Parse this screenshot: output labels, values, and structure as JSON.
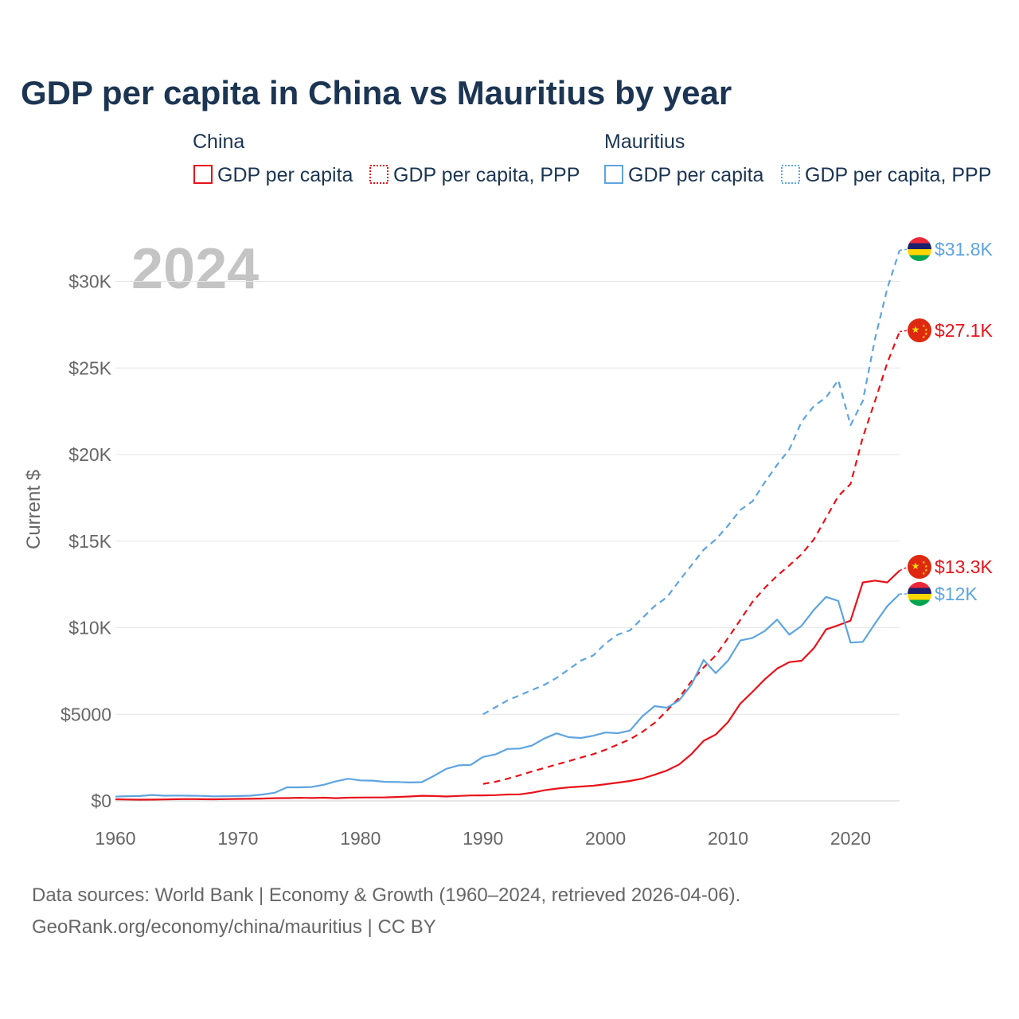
{
  "title": "GDP per capita in China vs Mauritius by year",
  "watermark_year": "2024",
  "legend": {
    "groups": [
      {
        "country": "China",
        "color": "#e8121a",
        "items": [
          "GDP per capita",
          "GDP per capita, PPP"
        ]
      },
      {
        "country": "Mauritius",
        "color": "#5ea4e0",
        "items": [
          "GDP per capita",
          "GDP per capita, PPP"
        ]
      }
    ]
  },
  "source_lines": [
    "Data sources: World Bank | Economy & Growth (1960–2024, retrieved 2026-04-06).",
    "GeoRank.org/economy/china/mauritius | CC BY"
  ],
  "chart_data": {
    "type": "line",
    "title": "GDP per capita in China vs Mauritius by year",
    "xlabel": "",
    "ylabel": "Current $",
    "xlim": [
      1960,
      2024
    ],
    "ylim": [
      0,
      32000
    ],
    "x_ticks": [
      1960,
      1970,
      1980,
      1990,
      2000,
      2010,
      2020
    ],
    "y_ticks": [
      0,
      5000,
      10000,
      15000,
      20000,
      25000,
      30000
    ],
    "y_tick_labels": [
      "$0",
      "$5000",
      "$10K",
      "$15K",
      "$20K",
      "$25K",
      "$30K"
    ],
    "grid": true,
    "series": [
      {
        "name": "China GDP per capita",
        "country": "China",
        "color": "#e8121a",
        "dash": false,
        "end_label": "$13.3K",
        "flag": "china",
        "x": [
          1960,
          1961,
          1962,
          1963,
          1964,
          1965,
          1966,
          1967,
          1968,
          1969,
          1970,
          1971,
          1972,
          1973,
          1974,
          1975,
          1976,
          1977,
          1978,
          1979,
          1980,
          1981,
          1982,
          1983,
          1984,
          1985,
          1986,
          1987,
          1988,
          1989,
          1990,
          1991,
          1992,
          1993,
          1994,
          1995,
          1996,
          1997,
          1998,
          1999,
          2000,
          2001,
          2002,
          2003,
          2004,
          2005,
          2006,
          2007,
          2008,
          2009,
          2010,
          2011,
          2012,
          2013,
          2014,
          2015,
          2016,
          2017,
          2018,
          2019,
          2020,
          2021,
          2022,
          2023,
          2024
        ],
        "values": [
          90,
          76,
          71,
          74,
          85,
          98,
          105,
          98,
          91,
          100,
          113,
          119,
          132,
          157,
          160,
          178,
          165,
          185,
          156,
          184,
          195,
          197,
          203,
          225,
          251,
          294,
          281,
          252,
          284,
          311,
          318,
          333,
          366,
          377,
          473,
          610,
          709,
          782,
          829,
          873,
          959,
          1053,
          1149,
          1289,
          1509,
          1753,
          2099,
          2694,
          3468,
          3832,
          4550,
          5614,
          6301,
          7020,
          7636,
          8016,
          8094,
          8817,
          9905,
          10144,
          10409,
          12618,
          12720,
          12614,
          13303
        ]
      },
      {
        "name": "China GDP per capita, PPP",
        "country": "China",
        "color": "#e8121a",
        "dash": true,
        "end_label": "$27.1K",
        "flag": "china",
        "x": [
          1990,
          1991,
          1992,
          1993,
          1994,
          1995,
          1996,
          1997,
          1998,
          1999,
          2000,
          2001,
          2002,
          2003,
          2004,
          2005,
          2006,
          2007,
          2008,
          2009,
          2010,
          2011,
          2012,
          2013,
          2014,
          2015,
          2016,
          2017,
          2018,
          2019,
          2020,
          2021,
          2022,
          2023,
          2024
        ],
        "values": [
          980,
          1100,
          1280,
          1480,
          1700,
          1900,
          2100,
          2300,
          2500,
          2700,
          2950,
          3250,
          3560,
          3980,
          4500,
          5200,
          5950,
          6900,
          7700,
          8400,
          9400,
          10450,
          11500,
          12300,
          13000,
          13600,
          14250,
          15100,
          16350,
          17600,
          18300,
          21000,
          23100,
          25300,
          27100
        ]
      },
      {
        "name": "Mauritius GDP per capita",
        "country": "Mauritius",
        "color": "#5ea4e0",
        "dash": false,
        "end_label": "$12K",
        "flag": "mauritius",
        "x": [
          1960,
          1961,
          1962,
          1963,
          1964,
          1965,
          1966,
          1967,
          1968,
          1969,
          1970,
          1971,
          1972,
          1973,
          1974,
          1975,
          1976,
          1977,
          1978,
          1979,
          1980,
          1981,
          1982,
          1983,
          1984,
          1985,
          1986,
          1987,
          1988,
          1989,
          1990,
          1991,
          1992,
          1993,
          1994,
          1995,
          1996,
          1997,
          1998,
          1999,
          2000,
          2001,
          2002,
          2003,
          2004,
          2005,
          2006,
          2007,
          2008,
          2009,
          2010,
          2011,
          2012,
          2013,
          2014,
          2015,
          2016,
          2017,
          2018,
          2019,
          2020,
          2021,
          2022,
          2023,
          2024
        ],
        "values": [
          250,
          270,
          280,
          340,
          300,
          310,
          300,
          290,
          260,
          270,
          280,
          300,
          370,
          470,
          780,
          780,
          800,
          930,
          1130,
          1280,
          1180,
          1170,
          1100,
          1090,
          1060,
          1080,
          1450,
          1850,
          2050,
          2080,
          2540,
          2680,
          3000,
          3020,
          3200,
          3600,
          3900,
          3680,
          3630,
          3760,
          3950,
          3910,
          4060,
          4880,
          5470,
          5380,
          5800,
          6700,
          8140,
          7380,
          8100,
          9260,
          9410,
          9810,
          10470,
          9600,
          10110,
          11030,
          11780,
          11550,
          9140,
          9180,
          10250,
          11250,
          11950
        ]
      },
      {
        "name": "Mauritius GDP per capita, PPP",
        "country": "Mauritius",
        "color": "#5ea4e0",
        "dash": true,
        "end_label": "$31.8K",
        "flag": "mauritius",
        "x": [
          1990,
          1991,
          1992,
          1993,
          1994,
          1995,
          1996,
          1997,
          1998,
          1999,
          2000,
          2001,
          2002,
          2003,
          2004,
          2005,
          2006,
          2007,
          2008,
          2009,
          2010,
          2011,
          2012,
          2013,
          2014,
          2015,
          2016,
          2017,
          2018,
          2019,
          2020,
          2021,
          2022,
          2023,
          2024
        ],
        "values": [
          5000,
          5400,
          5800,
          6100,
          6400,
          6700,
          7100,
          7600,
          8100,
          8400,
          9100,
          9600,
          9850,
          10550,
          11250,
          11750,
          12700,
          13600,
          14500,
          15100,
          15900,
          16800,
          17300,
          18400,
          19400,
          20300,
          21900,
          22800,
          23300,
          24300,
          21700,
          23100,
          26700,
          29600,
          31800
        ]
      }
    ]
  }
}
